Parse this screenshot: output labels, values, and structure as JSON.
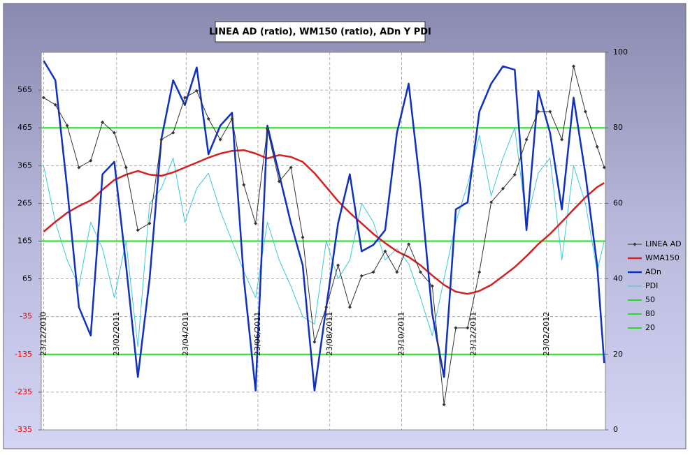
{
  "chart_data": {
    "type": "line",
    "title": "LINEA AD (ratio), WM150 (ratio), ADn Y PDI",
    "x": [
      "23/12/2010",
      "02/01/2011",
      "12/01/2011",
      "22/01/2011",
      "01/02/2011",
      "11/02/2011",
      "21/02/2011",
      "03/03/2011",
      "13/03/2011",
      "23/03/2011",
      "02/04/2011",
      "12/04/2011",
      "22/04/2011",
      "02/05/2011",
      "12/05/2011",
      "22/05/2011",
      "01/06/2011",
      "11/06/2011",
      "21/06/2011",
      "01/07/2011",
      "11/07/2011",
      "21/07/2011",
      "31/07/2011",
      "10/08/2011",
      "20/08/2011",
      "30/08/2011",
      "09/09/2011",
      "19/09/2011",
      "29/09/2011",
      "09/10/2011",
      "19/10/2011",
      "29/10/2011",
      "08/11/2011",
      "18/11/2011",
      "28/11/2011",
      "08/12/2011",
      "18/12/2011",
      "28/12/2011",
      "07/01/2012",
      "17/01/2012",
      "27/01/2012",
      "06/02/2012",
      "16/02/2012",
      "26/02/2012",
      "07/03/2012",
      "17/03/2012",
      "27/03/2012",
      "06/04/2012",
      "12/04/2012"
    ],
    "xlim": [
      "21/12/2010",
      "13/04/2012"
    ],
    "xticks": [
      "23/12/2010",
      "23/02/2011",
      "23/04/2011",
      "23/06/2011",
      "23/08/2011",
      "23/10/2011",
      "23/12/2011",
      "23/02/2012"
    ],
    "ylim": [
      -335,
      665
    ],
    "yticks": [
      -335,
      -235,
      -135,
      -35,
      65,
      165,
      265,
      365,
      465,
      565
    ],
    "y2lim": [
      0,
      100
    ],
    "y2ticks": [
      0,
      20,
      40,
      60,
      80,
      100
    ],
    "grid": true,
    "legend_position": "right",
    "series": [
      {
        "name": "LINEA AD",
        "color": "#333333",
        "markers": true,
        "values": [
          545,
          526,
          471,
          360,
          378,
          480,
          452,
          360,
          194,
          212,
          434,
          452,
          545,
          563,
          489,
          434,
          489,
          314,
          212,
          462,
          323,
          360,
          175,
          -102,
          -10,
          101,
          -10,
          73,
          83,
          138,
          83,
          157,
          83,
          46,
          -268,
          -65,
          -65,
          83,
          268,
          304,
          341,
          434,
          508,
          508,
          434,
          628,
          508,
          415,
          360
        ]
      },
      {
        "name": "WMA150",
        "color": "#d42020",
        "width": 2.5,
        "values": [
          190,
          216,
          240,
          258,
          273,
          301,
          327,
          341,
          351,
          341,
          338,
          347,
          360,
          373,
          386,
          397,
          404,
          406,
          397,
          384,
          393,
          388,
          375,
          345,
          308,
          271,
          240,
          212,
          184,
          160,
          138,
          123,
          101,
          74,
          49,
          31,
          25,
          33,
          49,
          72,
          96,
          125,
          157,
          184,
          216,
          249,
          281,
          308,
          319
        ]
      },
      {
        "name": "ADn",
        "color": "#1030c0",
        "width": 2.5,
        "axis": "y2",
        "values": [
          97.8,
          92.6,
          64,
          32.5,
          25,
          67.7,
          71,
          43.6,
          14,
          40,
          77,
          92.6,
          86,
          96,
          73,
          80.6,
          84,
          40,
          10.4,
          80.6,
          67.7,
          54.7,
          43.6,
          10.4,
          32.5,
          54.7,
          67.7,
          47.3,
          49,
          52.9,
          78.7,
          91.7,
          64,
          30.7,
          14,
          58.4,
          60.3,
          84.3,
          91.7,
          96.3,
          95.4,
          52.9,
          89.8,
          78.7,
          58.4,
          88,
          67.7,
          43.6,
          17.7
        ]
      },
      {
        "name": "PDI",
        "color": "#3cc8dc",
        "width": 1,
        "axis": "y2",
        "values": [
          70,
          55,
          45,
          38,
          55,
          48,
          35,
          50,
          22,
          60,
          64,
          72,
          55,
          64,
          68,
          58,
          50,
          42,
          35,
          55,
          45,
          38,
          30,
          28,
          50,
          40,
          45,
          60,
          55,
          45,
          48,
          44,
          35,
          25,
          40,
          55,
          65,
          78,
          62,
          72,
          80,
          55,
          68,
          72,
          45,
          70,
          60,
          42,
          50
        ]
      }
    ],
    "reference_lines": [
      {
        "name": "50",
        "value": 50,
        "color": "#22dd22",
        "axis": "y2"
      },
      {
        "name": "80",
        "value": 80,
        "color": "#22dd22",
        "axis": "y2"
      },
      {
        "name": "20",
        "value": 20,
        "color": "#22dd22",
        "axis": "y2"
      }
    ]
  }
}
